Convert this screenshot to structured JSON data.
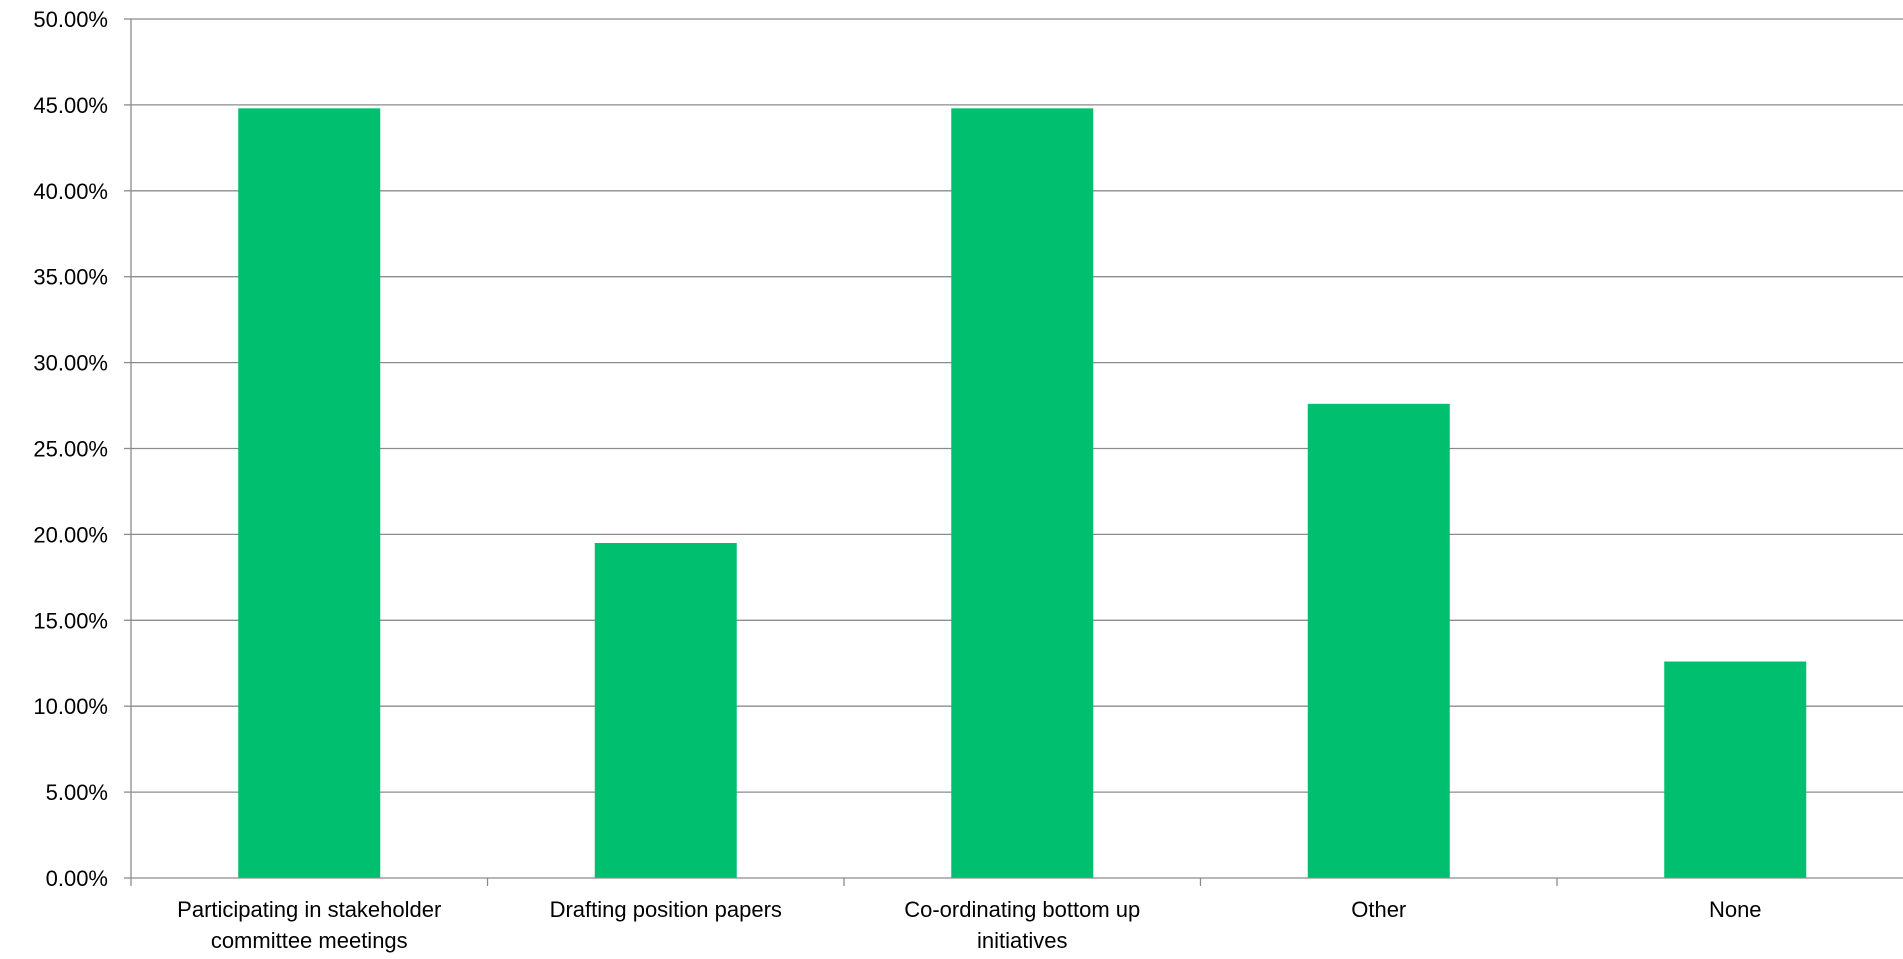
{
  "chart_data": {
    "type": "bar",
    "title": "",
    "xlabel": "",
    "ylabel": "",
    "categories": [
      [
        "Participating in stakeholder",
        "committee meetings"
      ],
      [
        "Drafting position papers"
      ],
      [
        "Co-ordinating bottom up",
        "initiatives"
      ],
      [
        "Other"
      ],
      [
        "None"
      ]
    ],
    "values": [
      44.8,
      19.5,
      44.8,
      27.6,
      12.6
    ],
    "ylim": [
      0,
      50
    ],
    "yticks": [
      0,
      5,
      10,
      15,
      20,
      25,
      30,
      35,
      40,
      45,
      50
    ],
    "ytick_labels": [
      "0.00%",
      "5.00%",
      "10.00%",
      "15.00%",
      "20.00%",
      "25.00%",
      "30.00%",
      "35.00%",
      "40.00%",
      "45.00%",
      "50.00%"
    ],
    "grid": true,
    "legend": "none",
    "bar_color": "#00BF6F",
    "grid_color": "#8c8c8c",
    "axis_color": "#8c8c8c"
  }
}
